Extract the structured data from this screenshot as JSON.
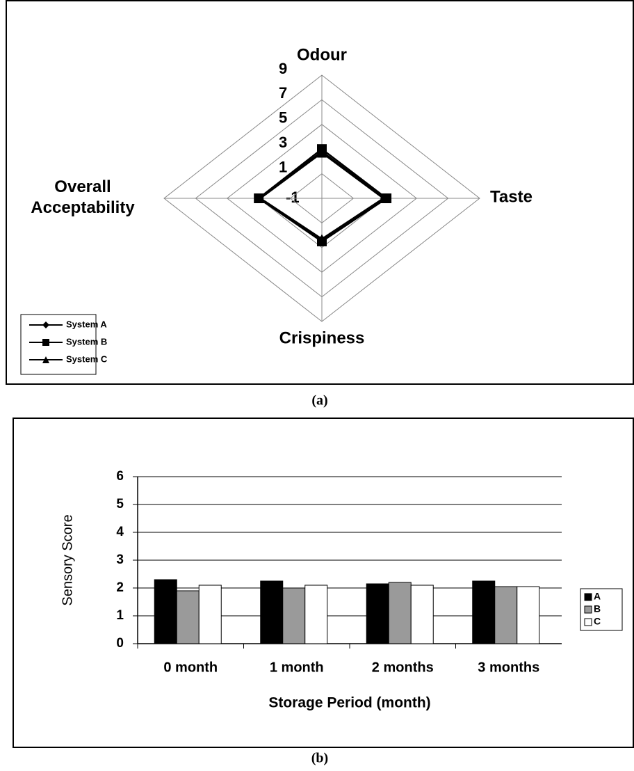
{
  "chart_data": [
    {
      "type": "radar",
      "caption": "(a)",
      "categories": [
        "Odour",
        "Taste",
        "Crispiness",
        "Overall Acceptability"
      ],
      "ylim": [
        -1,
        9
      ],
      "yticks": [
        -1,
        1,
        3,
        5,
        7,
        9
      ],
      "legend": "lower left",
      "series": [
        {
          "name": "System A",
          "color": "#000000",
          "marker": "diamond",
          "values": [
            2.8,
            3.0,
            2.4,
            3.0
          ]
        },
        {
          "name": "System B",
          "color": "#000000",
          "marker": "square",
          "values": [
            3.0,
            3.1,
            2.5,
            3.0
          ]
        },
        {
          "name": "System C",
          "color": "#000000",
          "marker": "triangle",
          "values": [
            2.7,
            2.9,
            2.3,
            2.9
          ]
        }
      ]
    },
    {
      "type": "bar",
      "caption": "(b)",
      "categories": [
        "0 month",
        "1 month",
        "2 months",
        "3 months"
      ],
      "xlabel": "Storage Period (month)",
      "ylabel": "Sensory Score",
      "ylim": [
        0,
        6
      ],
      "yticks": [
        0,
        1,
        2,
        3,
        4,
        5,
        6
      ],
      "grid": true,
      "legend": "right",
      "series": [
        {
          "name": "A",
          "color": "#000000",
          "values": [
            2.3,
            2.25,
            2.15,
            2.25
          ]
        },
        {
          "name": "B",
          "color": "#9a9a9a",
          "values": [
            1.9,
            2.0,
            2.2,
            2.05
          ]
        },
        {
          "name": "C",
          "color": "#ffffff",
          "values": [
            2.1,
            2.1,
            2.1,
            2.05
          ]
        }
      ]
    }
  ]
}
